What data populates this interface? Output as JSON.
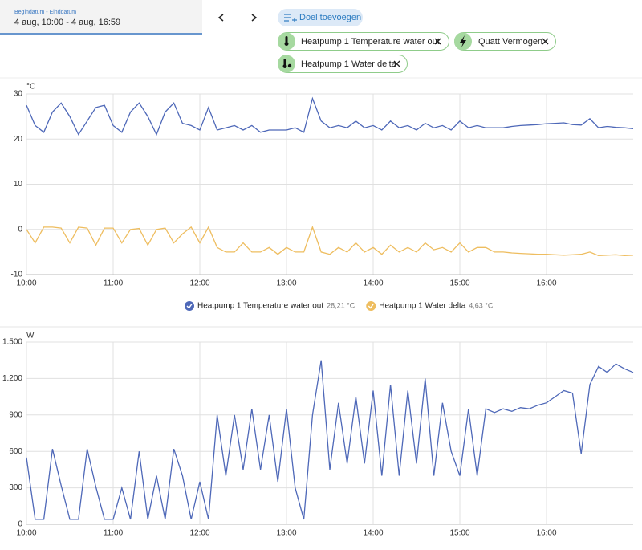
{
  "controls": {
    "date_label": "Begindatum - Einddatum",
    "date_value": "4 aug, 10:00 - 4 aug, 16:59",
    "add_target": "Doel toevoegen",
    "chips": [
      "Heatpump 1 Temperature water out",
      "Quatt Vermogen",
      "Heatpump 1 Water delta"
    ]
  },
  "chart_data": [
    {
      "type": "line",
      "y_label": "°C",
      "xlim": [
        10,
        17
      ],
      "ylim": [
        -10,
        30
      ],
      "yticks": [
        -10,
        0,
        10,
        20,
        30
      ],
      "xticks": [
        {
          "value": 10,
          "label": "10:00"
        },
        {
          "value": 11,
          "label": "11:00"
        },
        {
          "value": 12,
          "label": "12:00"
        },
        {
          "value": 13,
          "label": "13:00"
        },
        {
          "value": 14,
          "label": "14:00"
        },
        {
          "value": 15,
          "label": "15:00"
        },
        {
          "value": 16,
          "label": "16:00"
        }
      ],
      "grid": true,
      "legend": "bottom",
      "x": [
        10.0,
        10.1,
        10.2,
        10.3,
        10.4,
        10.5,
        10.6,
        10.7,
        10.8,
        10.9,
        11.0,
        11.1,
        11.2,
        11.3,
        11.4,
        11.5,
        11.6,
        11.7,
        11.8,
        11.9,
        12.0,
        12.1,
        12.2,
        12.3,
        12.4,
        12.5,
        12.6,
        12.7,
        12.8,
        12.9,
        13.0,
        13.1,
        13.2,
        13.3,
        13.4,
        13.5,
        13.6,
        13.7,
        13.8,
        13.9,
        14.0,
        14.1,
        14.2,
        14.3,
        14.4,
        14.5,
        14.6,
        14.7,
        14.8,
        14.9,
        15.0,
        15.1,
        15.2,
        15.3,
        15.4,
        15.5,
        15.6,
        15.7,
        15.8,
        15.9,
        16.0,
        16.1,
        16.2,
        16.3,
        16.4,
        16.5,
        16.6,
        16.7,
        16.8,
        16.9,
        17.0
      ],
      "series": [
        {
          "name": "Heatpump 1 Temperature water out",
          "current": "28,21 °C",
          "color": "#4e68b8",
          "values": [
            27.5,
            23,
            21.5,
            26,
            28,
            25,
            21,
            24,
            27,
            27.5,
            23,
            21.5,
            26,
            28,
            25,
            21,
            26,
            28,
            23.5,
            23,
            22,
            27,
            22,
            22.5,
            23,
            22,
            23,
            21.5,
            22,
            22,
            22,
            22.5,
            21.5,
            29,
            24,
            22.5,
            23,
            22.5,
            24,
            22.5,
            23,
            22,
            24,
            22.5,
            23,
            22,
            23.5,
            22.5,
            23,
            22,
            24,
            22.5,
            23,
            22.5,
            22.5,
            22.5,
            22.8,
            23,
            23.1,
            23.2,
            23.4,
            23.5,
            23.6,
            23.2,
            23.1,
            24.5,
            22.5,
            22.8,
            22.6,
            22.5,
            22.3
          ]
        },
        {
          "name": "Heatpump 1 Water delta",
          "current": "4,63 °C",
          "color": "#eebd5f",
          "values": [
            0,
            -3,
            0.5,
            0.5,
            0.3,
            -3,
            0.5,
            0.3,
            -3.5,
            0.3,
            0.3,
            -3,
            0,
            0.2,
            -3.5,
            0,
            0.3,
            -3,
            -1,
            0.5,
            -3,
            0.5,
            -4,
            -5,
            -5,
            -3,
            -5,
            -5,
            -4,
            -5.5,
            -4,
            -5,
            -5,
            0.5,
            -5,
            -5.5,
            -4,
            -5,
            -3,
            -5,
            -4,
            -5.5,
            -3.5,
            -5,
            -4,
            -5,
            -3,
            -4.5,
            -4,
            -5,
            -3,
            -5,
            -4,
            -4,
            -5,
            -5,
            -5.2,
            -5.3,
            -5.4,
            -5.5,
            -5.5,
            -5.6,
            -5.7,
            -5.6,
            -5.5,
            -5,
            -5.8,
            -5.7,
            -5.6,
            -5.8,
            -5.7
          ]
        }
      ]
    },
    {
      "type": "line",
      "y_label": "W",
      "xlim": [
        10,
        17
      ],
      "ylim": [
        0,
        1500
      ],
      "yticks": [
        0,
        300,
        600,
        900,
        {
          "value": 1200,
          "label": "1.200"
        },
        {
          "value": 1500,
          "label": "1.500"
        }
      ],
      "xticks": [
        {
          "value": 10,
          "label": "10:00"
        },
        {
          "value": 11,
          "label": "11:00"
        },
        {
          "value": 12,
          "label": "12:00"
        },
        {
          "value": 13,
          "label": "13:00"
        },
        {
          "value": 14,
          "label": "14:00"
        },
        {
          "value": 15,
          "label": "15:00"
        },
        {
          "value": 16,
          "label": "16:00"
        }
      ],
      "grid": true,
      "x": [
        10.0,
        10.1,
        10.2,
        10.3,
        10.4,
        10.5,
        10.6,
        10.7,
        10.8,
        10.9,
        11.0,
        11.1,
        11.2,
        11.3,
        11.4,
        11.5,
        11.6,
        11.7,
        11.8,
        11.9,
        12.0,
        12.1,
        12.2,
        12.3,
        12.4,
        12.5,
        12.6,
        12.7,
        12.8,
        12.9,
        13.0,
        13.1,
        13.2,
        13.3,
        13.4,
        13.5,
        13.6,
        13.7,
        13.8,
        13.9,
        14.0,
        14.1,
        14.2,
        14.3,
        14.4,
        14.5,
        14.6,
        14.7,
        14.8,
        14.9,
        15.0,
        15.1,
        15.2,
        15.3,
        15.4,
        15.5,
        15.6,
        15.7,
        15.8,
        15.9,
        16.0,
        16.1,
        16.2,
        16.3,
        16.4,
        16.5,
        16.6,
        16.7,
        16.8,
        16.9,
        17.0
      ],
      "series": [
        {
          "name": "Quatt Vermogen",
          "color": "#4e68b8",
          "values": [
            550,
            40,
            40,
            620,
            320,
            40,
            40,
            620,
            310,
            40,
            40,
            300,
            40,
            600,
            40,
            400,
            40,
            620,
            400,
            40,
            350,
            40,
            900,
            400,
            900,
            450,
            950,
            450,
            900,
            350,
            950,
            300,
            40,
            900,
            1350,
            450,
            1000,
            500,
            1050,
            500,
            1100,
            400,
            1150,
            400,
            1100,
            500,
            1200,
            400,
            1000,
            600,
            400,
            950,
            400,
            950,
            920,
            950,
            930,
            960,
            950,
            980,
            1000,
            1050,
            1100,
            1080,
            580,
            1150,
            1300,
            1250,
            1320,
            1280,
            1250
          ]
        }
      ]
    }
  ]
}
